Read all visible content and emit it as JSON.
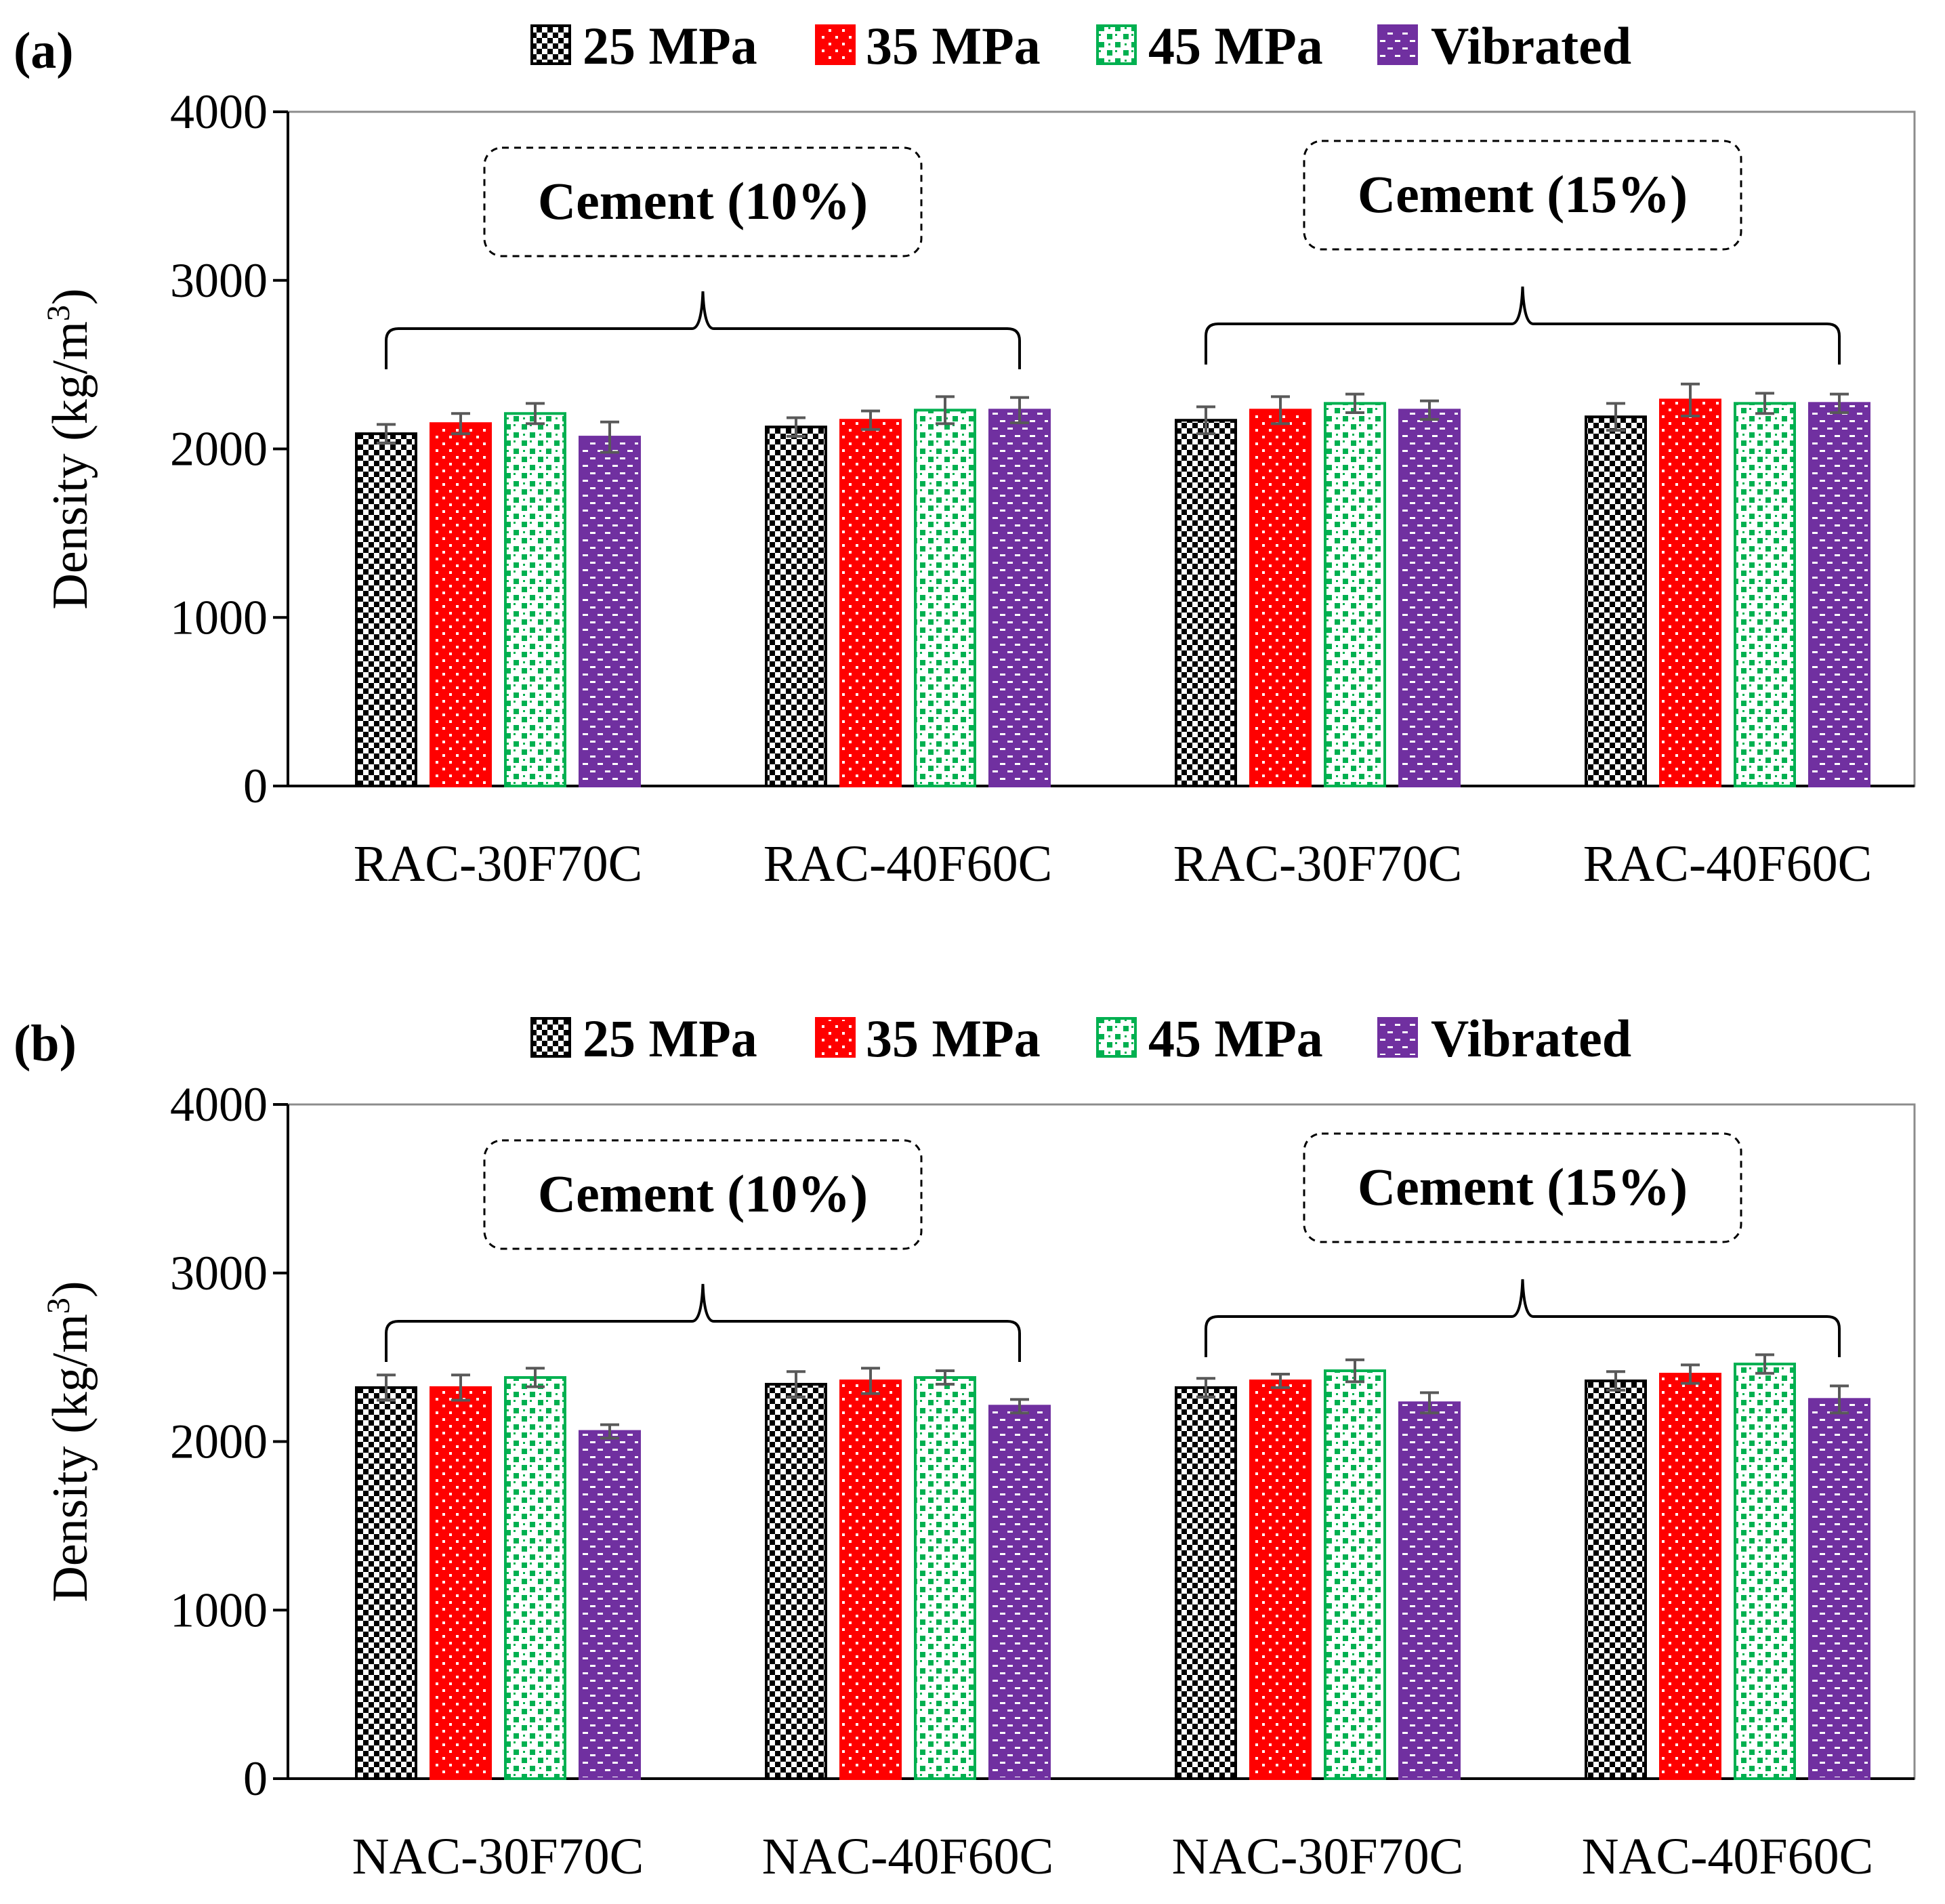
{
  "chart_data": [
    {
      "type": "bar",
      "panel_label": "(a)",
      "title": "",
      "xlabel": "",
      "ylabel_main": "Density  (kg/m",
      "ylabel_sup": "3",
      "ylabel_tail": ")",
      "ylim": [
        0,
        4000
      ],
      "yticks": [
        0,
        1000,
        2000,
        3000,
        4000
      ],
      "categories": [
        "RAC-30F70C",
        "RAC-40F60C",
        "RAC-30F70C",
        "RAC-40F60C"
      ],
      "series": [
        {
          "name": "25 MPa",
          "values": [
            2090,
            2130,
            2170,
            2190
          ],
          "errors": [
            55,
            55,
            80,
            80
          ]
        },
        {
          "name": "35 MPa",
          "values": [
            2150,
            2170,
            2230,
            2290
          ],
          "errors": [
            60,
            55,
            80,
            95
          ]
        },
        {
          "name": "45 MPa",
          "values": [
            2210,
            2230,
            2270,
            2270
          ],
          "errors": [
            60,
            80,
            55,
            60
          ]
        },
        {
          "name": "Vibrated",
          "values": [
            2070,
            2230,
            2230,
            2270
          ],
          "errors": [
            90,
            75,
            55,
            55
          ]
        }
      ],
      "annotations": [
        {
          "text": "Cement (10%)",
          "groups": [
            0,
            1
          ]
        },
        {
          "text": "Cement (15%)",
          "groups": [
            2,
            3
          ]
        }
      ],
      "legend_position": "top"
    },
    {
      "type": "bar",
      "panel_label": "(b)",
      "title": "",
      "xlabel": "",
      "ylabel_main": "Density  (kg/m",
      "ylabel_sup": "3",
      "ylabel_tail": ")",
      "ylim": [
        0,
        4000
      ],
      "yticks": [
        0,
        1000,
        2000,
        3000,
        4000
      ],
      "categories": [
        "NAC-30F70C",
        "NAC-40F60C",
        "NAC-30F70C",
        "NAC-40F60C"
      ],
      "series": [
        {
          "name": "25 MPa",
          "values": [
            2320,
            2340,
            2320,
            2360
          ],
          "errors": [
            75,
            75,
            55,
            55
          ]
        },
        {
          "name": "35 MPa",
          "values": [
            2320,
            2360,
            2360,
            2400
          ],
          "errors": [
            75,
            75,
            40,
            55
          ]
        },
        {
          "name": "45 MPa",
          "values": [
            2380,
            2380,
            2420,
            2460
          ],
          "errors": [
            55,
            40,
            65,
            55
          ]
        },
        {
          "name": "Vibrated",
          "values": [
            2060,
            2210,
            2230,
            2250
          ],
          "errors": [
            40,
            40,
            60,
            80
          ]
        }
      ],
      "annotations": [
        {
          "text": "Cement (10%)",
          "groups": [
            0,
            1
          ]
        },
        {
          "text": "Cement (15%)",
          "groups": [
            2,
            3
          ]
        }
      ],
      "legend_position": "top"
    }
  ],
  "colors": {
    "s25_bg": "#ffffff",
    "s25_fg": "#000000",
    "s35_bg": "#ff0000",
    "s35_fg": "#ffffff",
    "s45_bg": "#ffffff",
    "s45_fg": "#00b050",
    "vib_bg": "#7030a0",
    "vib_fg": "#ffffff",
    "error_bar": "#595959",
    "axis": "#000000",
    "frame": "#8c8c8c"
  }
}
